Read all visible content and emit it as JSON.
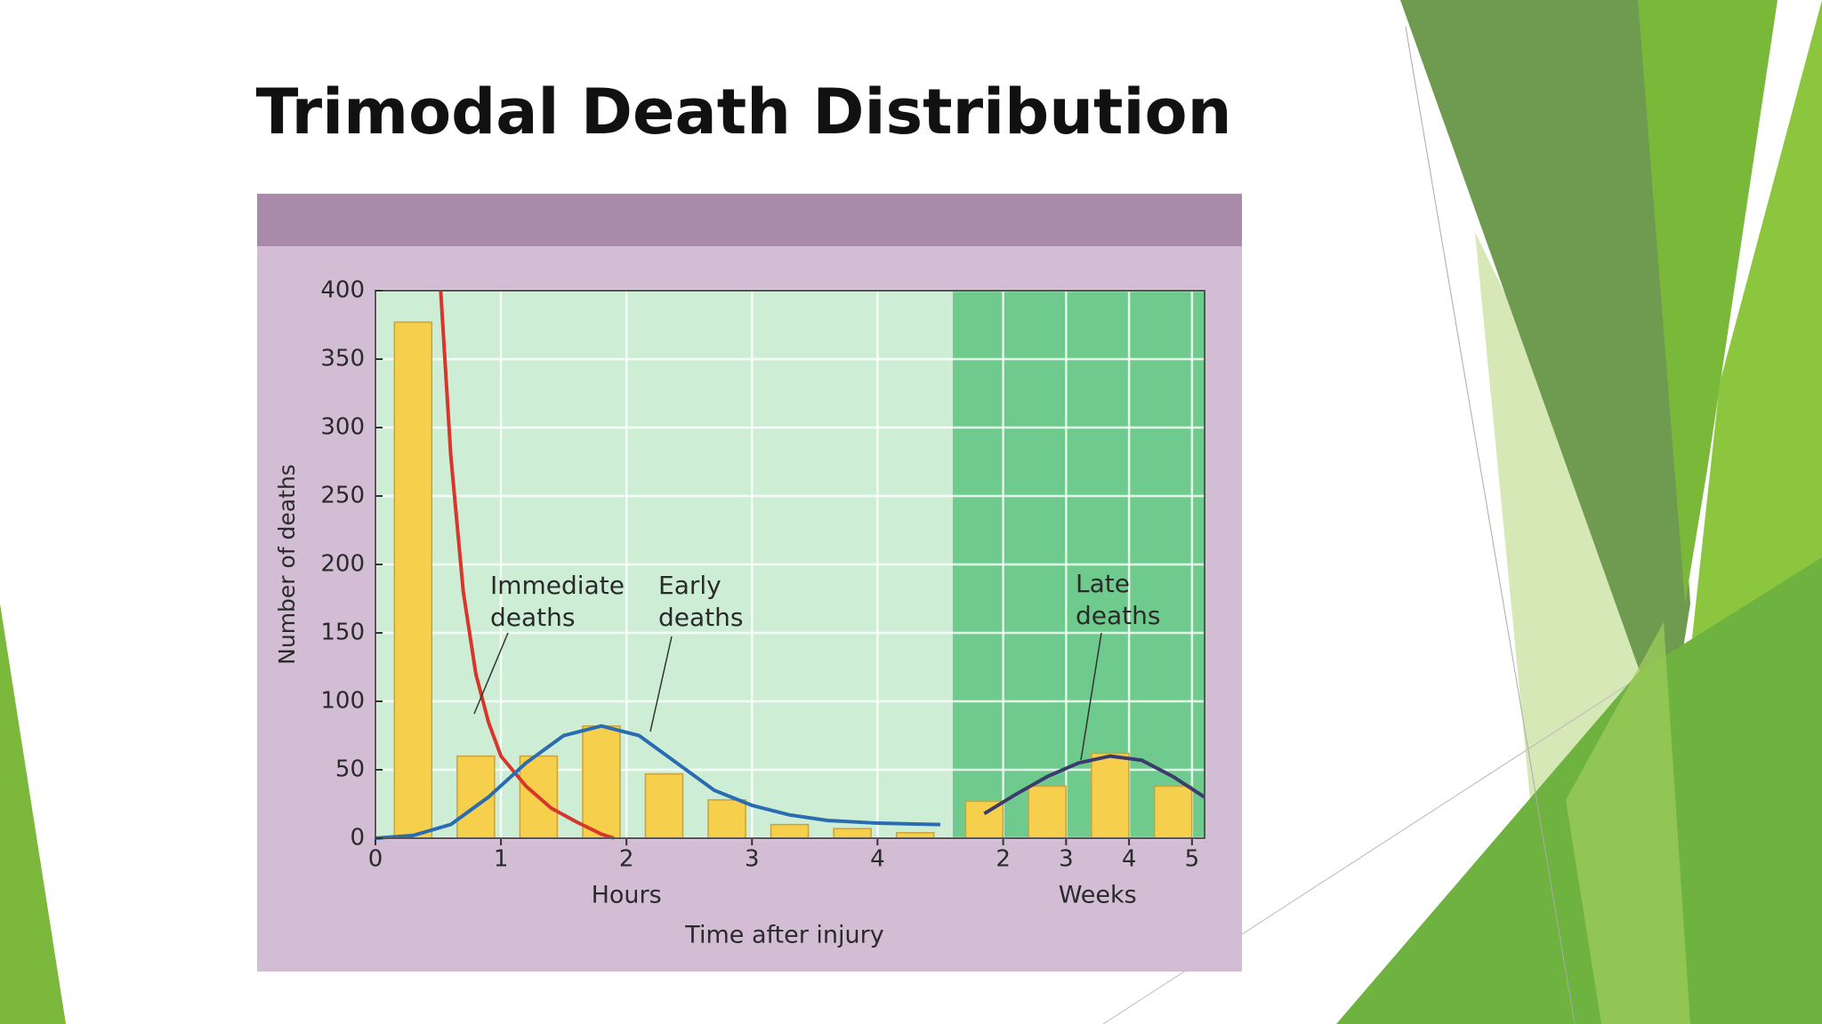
{
  "title": "Trimodal Death Distribution",
  "chart_data": {
    "type": "bar",
    "ylabel": "Number of deaths",
    "xlabel": "Time after injury",
    "ylim": [
      0,
      400
    ],
    "yticks": [
      0,
      50,
      100,
      150,
      200,
      250,
      300,
      350,
      400
    ],
    "grid": true,
    "panels": [
      {
        "xlabel": "Hours",
        "xlim": [
          0,
          4.6
        ],
        "xticks": [
          0,
          1,
          2,
          3,
          4
        ],
        "color": "#cdeed5",
        "bars": {
          "color": "#f6cf4c",
          "x": [
            0.3,
            0.8,
            1.3,
            1.8,
            2.3,
            2.8,
            3.3,
            3.8,
            4.3
          ],
          "values": [
            377,
            60,
            60,
            82,
            47,
            28,
            10,
            7,
            4
          ]
        },
        "curves": [
          {
            "name": "Immediate deaths",
            "color": "#d8352b",
            "x": [
              0.52,
              0.6,
              0.7,
              0.8,
              0.9,
              1.0,
              1.2,
              1.4,
              1.6,
              1.8,
              1.9
            ],
            "values": [
              400,
              280,
              180,
              120,
              85,
              60,
              38,
              22,
              12,
              3,
              0
            ]
          },
          {
            "name": "Early deaths",
            "color": "#2a6cb2",
            "x": [
              0,
              0.3,
              0.6,
              0.9,
              1.2,
              1.5,
              1.8,
              2.1,
              2.4,
              2.7,
              3.0,
              3.3,
              3.6,
              4.0,
              4.5
            ],
            "values": [
              0,
              2,
              10,
              30,
              55,
              75,
              82,
              75,
              55,
              35,
              24,
              17,
              13,
              11,
              10
            ]
          }
        ]
      },
      {
        "xlabel": "Weeks",
        "xlim": [
          1.2,
          5.2
        ],
        "xticks": [
          2,
          3,
          4,
          5
        ],
        "color": "#6fcb8d",
        "bars": {
          "color": "#f6cf4c",
          "x": [
            1.7,
            2.7,
            3.7,
            4.7
          ],
          "values": [
            27,
            38,
            62,
            38
          ]
        },
        "curves": [
          {
            "name": "Late deaths",
            "color": "#3b3b6e",
            "x": [
              1.7,
              2.2,
              2.7,
              3.2,
              3.7,
              4.2,
              4.7,
              5.2
            ],
            "values": [
              18,
              32,
              45,
              55,
              60,
              57,
              45,
              30
            ]
          }
        ]
      }
    ]
  }
}
